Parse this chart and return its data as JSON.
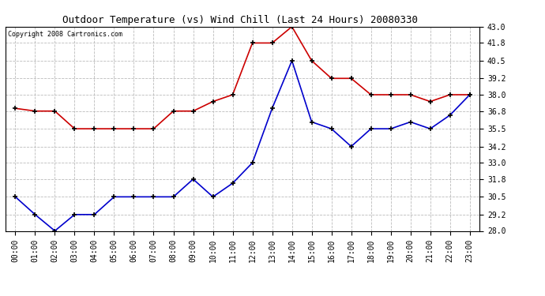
{
  "title": "Outdoor Temperature (vs) Wind Chill (Last 24 Hours) 20080330",
  "copyright": "Copyright 2008 Cartronics.com",
  "x_labels": [
    "00:00",
    "01:00",
    "02:00",
    "03:00",
    "04:00",
    "05:00",
    "06:00",
    "07:00",
    "08:00",
    "09:00",
    "10:00",
    "11:00",
    "12:00",
    "13:00",
    "14:00",
    "15:00",
    "16:00",
    "17:00",
    "18:00",
    "19:00",
    "20:00",
    "21:00",
    "22:00",
    "23:00"
  ],
  "temp_red": [
    37.0,
    36.8,
    36.8,
    35.5,
    35.5,
    35.5,
    35.5,
    35.5,
    36.8,
    36.8,
    37.5,
    38.0,
    41.8,
    41.8,
    43.0,
    40.5,
    39.2,
    39.2,
    38.0,
    38.0,
    38.0,
    37.5,
    38.0,
    38.0
  ],
  "temp_blue": [
    30.5,
    29.2,
    28.0,
    29.2,
    29.2,
    30.5,
    30.5,
    30.5,
    30.5,
    31.8,
    30.5,
    31.5,
    33.0,
    37.0,
    40.5,
    36.0,
    35.5,
    34.2,
    35.5,
    35.5,
    36.0,
    35.5,
    36.5,
    38.0
  ],
  "ylim_min": 28.0,
  "ylim_max": 43.0,
  "yticks": [
    28.0,
    29.2,
    30.5,
    31.8,
    33.0,
    34.2,
    35.5,
    36.8,
    38.0,
    39.2,
    40.5,
    41.8,
    43.0
  ],
  "red_color": "#cc0000",
  "blue_color": "#0000cc",
  "bg_color": "#ffffff",
  "grid_color": "#bbbbbb",
  "title_fontsize": 9,
  "copyright_fontsize": 6,
  "tick_fontsize": 7,
  "ytick_fontsize": 7
}
